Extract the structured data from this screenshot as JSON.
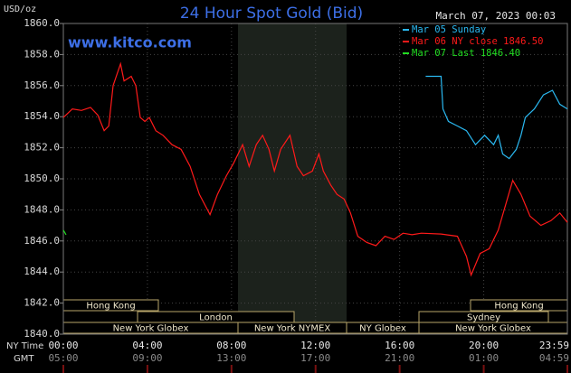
{
  "chart_data": {
    "type": "line",
    "title": "24 Hour Spot Gold (Bid)",
    "y_label": "USD/oz",
    "timestamp": "March 07, 2023 00:03",
    "source": "www.kitco.com",
    "x_label": "NY Time",
    "x2_label": "GMT",
    "xlim": [
      0,
      23.98
    ],
    "xticks": [
      {
        "value": 0,
        "label": "00:00"
      },
      {
        "value": 4,
        "label": "04:00"
      },
      {
        "value": 8,
        "label": "08:00"
      },
      {
        "value": 12,
        "label": "12:00"
      },
      {
        "value": 16,
        "label": "16:00"
      },
      {
        "value": 20,
        "label": "20:00"
      },
      {
        "value": 23.98,
        "label": "23:59"
      }
    ],
    "x2ticks": [
      {
        "value": 0,
        "label": "05:00"
      },
      {
        "value": 4,
        "label": "09:00"
      },
      {
        "value": 8,
        "label": "13:00"
      },
      {
        "value": 12,
        "label": "17:00"
      },
      {
        "value": 16,
        "label": "21:00"
      },
      {
        "value": 20,
        "label": "01:00"
      },
      {
        "value": 23.98,
        "label": "04:59"
      }
    ],
    "ylim": [
      1840,
      1860
    ],
    "yticks": [
      {
        "value": 1840,
        "label": "1840.0"
      },
      {
        "value": 1842,
        "label": "1842.0"
      },
      {
        "value": 1844,
        "label": "1844.0"
      },
      {
        "value": 1846,
        "label": "1846.0"
      },
      {
        "value": 1848,
        "label": "1848.0"
      },
      {
        "value": 1850,
        "label": "1850.0"
      },
      {
        "value": 1852,
        "label": "1852.0"
      },
      {
        "value": 1854,
        "label": "1854.0"
      },
      {
        "value": 1856,
        "label": "1856.0"
      },
      {
        "value": 1858,
        "label": "1858.0"
      },
      {
        "value": 1860,
        "label": "1860.0"
      }
    ],
    "grid": true,
    "sessions": [
      "Hong Kong",
      "London",
      "New York Globex",
      "New York NYMEX",
      "NY Globex",
      "Hong Kong",
      "Sydney",
      "New York Globex"
    ],
    "series": [
      {
        "name": "Mar 05 Sunday",
        "color": "#2ab8f0",
        "x": [
          17.24,
          17.97,
          18.06,
          18.32,
          18.75,
          19.18,
          19.61,
          20.04,
          20.47,
          20.69,
          20.9,
          21.21,
          21.55,
          21.77,
          21.98,
          22.41,
          22.84,
          23.27,
          23.62,
          23.98
        ],
        "values": [
          1856.6,
          1856.6,
          1854.5,
          1853.7,
          1853.4,
          1853.1,
          1852.2,
          1852.8,
          1852.2,
          1852.8,
          1851.6,
          1851.3,
          1851.9,
          1852.8,
          1853.95,
          1854.5,
          1855.4,
          1855.7,
          1854.8,
          1854.5
        ]
      },
      {
        "name": "Mar 06 NY close 1846.50",
        "color": "#ff1a1a",
        "x": [
          0,
          0.43,
          0.86,
          1.29,
          1.64,
          1.94,
          2.16,
          2.37,
          2.72,
          2.89,
          3.23,
          3.45,
          3.66,
          3.88,
          4.09,
          4.4,
          4.74,
          5.17,
          5.6,
          6.03,
          6.47,
          6.98,
          7.33,
          7.76,
          8.1,
          8.53,
          8.84,
          9.18,
          9.48,
          9.78,
          10.04,
          10.34,
          10.78,
          11.12,
          11.42,
          11.85,
          12.16,
          12.37,
          12.72,
          13.02,
          13.36,
          13.66,
          14.01,
          14.44,
          14.87,
          15.3,
          15.73,
          16.16,
          16.59,
          17.03,
          17.97,
          18.75,
          19.18,
          19.4,
          19.83,
          20.26,
          20.69,
          21.12,
          21.38,
          21.77,
          22.2,
          22.72,
          23.19,
          23.62,
          23.98
        ],
        "values": [
          1853.95,
          1854.5,
          1854.4,
          1854.6,
          1854.1,
          1853.1,
          1853.4,
          1856.0,
          1857.4,
          1856.3,
          1856.6,
          1856.0,
          1853.95,
          1853.7,
          1853.95,
          1853.1,
          1852.8,
          1852.2,
          1851.9,
          1850.8,
          1849.0,
          1847.7,
          1849.0,
          1850.2,
          1851.0,
          1852.2,
          1850.8,
          1852.2,
          1852.8,
          1851.9,
          1850.5,
          1851.9,
          1852.8,
          1850.8,
          1850.2,
          1850.5,
          1851.6,
          1850.5,
          1849.6,
          1849.0,
          1848.7,
          1847.8,
          1846.3,
          1845.9,
          1845.7,
          1846.3,
          1846.1,
          1846.5,
          1846.4,
          1846.5,
          1846.45,
          1846.3,
          1845.0,
          1843.8,
          1845.2,
          1845.5,
          1846.7,
          1848.7,
          1849.9,
          1849.0,
          1847.6,
          1847.0,
          1847.3,
          1847.8,
          1847.2
        ]
      },
      {
        "name": "Mar 07 Last 1846.40",
        "color": "#22dd22",
        "x": [
          0,
          0.13
        ],
        "values": [
          1846.7,
          1846.4
        ]
      }
    ]
  }
}
